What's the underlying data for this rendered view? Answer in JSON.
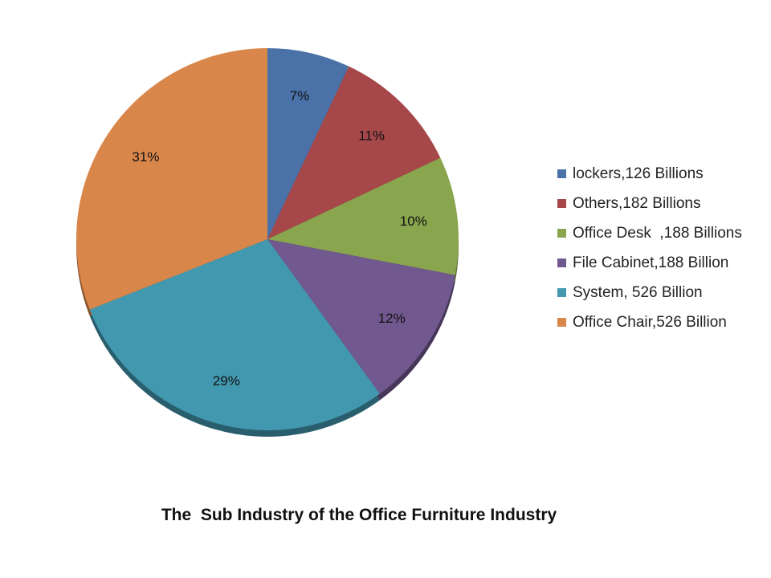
{
  "chart_data": {
    "type": "pie",
    "title": "The  Sub Industry of the Office Furniture Industry",
    "legend_position": "right",
    "slices": [
      {
        "name": "lockers,126 Billions",
        "percent": 7,
        "label": "7%",
        "color": "#4A72A8"
      },
      {
        "name": "Others,182 Billions",
        "percent": 11,
        "label": "11%",
        "color": "#A6474A"
      },
      {
        "name": "Office Desk  ,188 Billions",
        "percent": 10,
        "label": "10%",
        "color": "#89A54E"
      },
      {
        "name": "File Cabinet,188 Billion",
        "percent": 12,
        "label": "12%",
        "color": "#71588F"
      },
      {
        "name": "System, 526 Billion",
        "percent": 29,
        "label": "29%",
        "color": "#4298AF"
      },
      {
        "name": "Office Chair,526 Billion",
        "percent": 31,
        "label": "31%",
        "color": "#D9864A"
      }
    ]
  }
}
